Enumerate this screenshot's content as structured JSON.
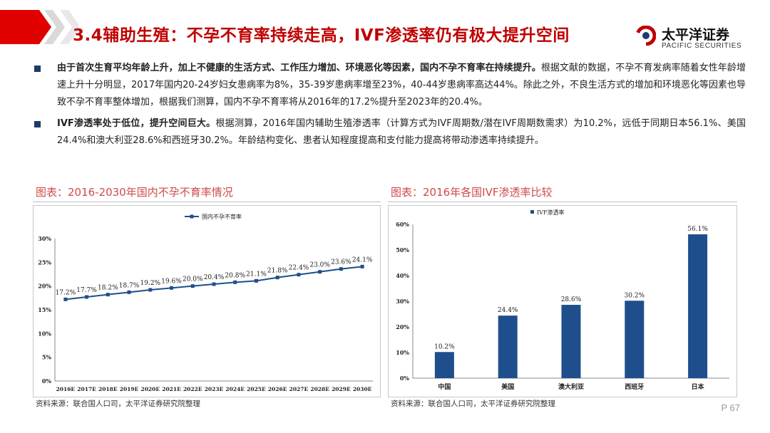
{
  "header": {
    "title": "3.4辅助生殖：不孕不育率持续走高，IVF渗透率仍有极大提升空间",
    "logo_cn": "太平洋证券",
    "logo_en": "PACIFIC SECURITIES"
  },
  "bullets": [
    {
      "bold": "由于首次生育平均年龄上升，加上不健康的生活方式、工作压力增加、环境恶化等因素，国内不孕不育率在持续提升。",
      "text": "根据文献的数据，不孕不育发病率随着女性年龄增速上升十分明显，2017年国内20-24岁妇女患病率为8%，35-39岁患病率增至23%，40-44岁患病率高达44%。除此之外，不良生活方式的增加和环境恶化等因素也导致不孕不育率整体增加，根据我们测算，国内不孕不育率将从2016年的17.2%提升至2023年的20.4%。"
    },
    {
      "bold": "IVF渗透率处于低位，提升空间巨大。",
      "text": "根据测算，2016年国内辅助生殖渗透率（计算方式为IVF周期数/潜在IVF周期数需求）为10.2%，远低于同期日本56.1%、美国24.4%和澳大利亚28.6%和西班牙30.2%。年龄结构变化、患者认知程度提高和支付能力提高将带动渗透率持续提升。"
    }
  ],
  "left_section": {
    "title": "图表：2016-2030年国内不孕不育率情况",
    "source": "资料来源：联合国人口司，太平洋证券研究院整理"
  },
  "right_section": {
    "title": "图表：2016年各国IVF渗透率比较",
    "source": "资料来源：联合国人口司，太平洋证券研究院整理"
  },
  "page_number": "P 67",
  "colors": {
    "title_red": "#c00000",
    "series_blue": "#1f4e8c",
    "bar_blue": "#1f4e8c",
    "bullet_navy": "#1f3a6b",
    "section_title": "#d04a4a"
  },
  "chart_data": [
    {
      "type": "line",
      "x": [
        "2016E",
        "2017E",
        "2018E",
        "2019E",
        "2020E",
        "2021E",
        "2022E",
        "2023E",
        "2024E",
        "2025E",
        "2026E",
        "2027E",
        "2028E",
        "2029E",
        "2030E"
      ],
      "series": [
        {
          "name": "国内不孕不育率",
          "values": [
            17.2,
            17.7,
            18.2,
            18.7,
            19.2,
            19.6,
            20.0,
            20.4,
            20.8,
            21.1,
            21.8,
            22.4,
            23.0,
            23.6,
            24.1
          ]
        }
      ],
      "data_labels": [
        "17.2%",
        "17.7%",
        "18.2%",
        "18.7%",
        "19.2%",
        "19.6%",
        "20.0%",
        "20.4%",
        "20.8%",
        "21.1%",
        "21.8%",
        "22.4%",
        "23.0%",
        "23.6%",
        "24.1%"
      ],
      "y_ticks": [
        "0%",
        "5%",
        "10%",
        "15%",
        "20%",
        "25%",
        "30%"
      ],
      "ylim": [
        0,
        30
      ],
      "grid": false,
      "legend": "top-center"
    },
    {
      "type": "bar",
      "categories": [
        "中国",
        "美国",
        "澳大利亚",
        "西班牙",
        "日本"
      ],
      "series": [
        {
          "name": "IVF渗透率",
          "values": [
            10.2,
            24.4,
            28.6,
            30.2,
            56.1
          ]
        }
      ],
      "data_labels": [
        "10.2%",
        "24.4%",
        "28.6%",
        "30.2%",
        "56.1%"
      ],
      "y_ticks": [
        "0%",
        "10%",
        "20%",
        "30%",
        "40%",
        "50%",
        "60%"
      ],
      "ylim": [
        0,
        60
      ],
      "grid": false,
      "legend": "top-center"
    }
  ]
}
